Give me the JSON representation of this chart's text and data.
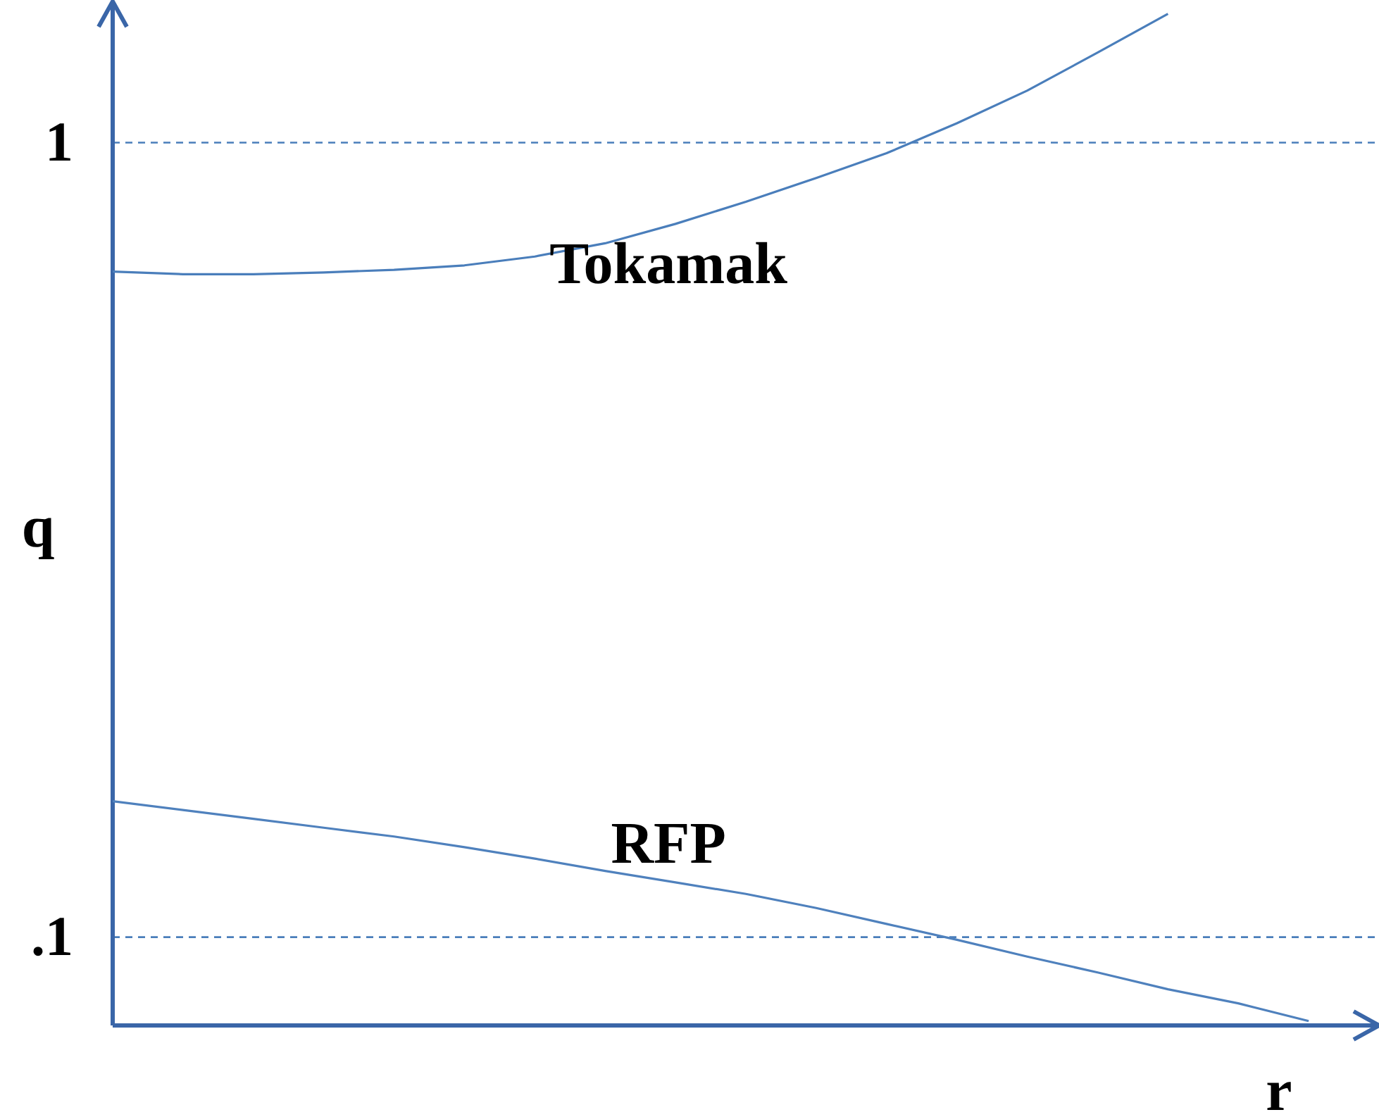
{
  "chart_data": {
    "type": "line",
    "ylabel": "q",
    "annotations": [
      "r"
    ],
    "categories": [
      null,
      null,
      null,
      null,
      null,
      null,
      null,
      null,
      null,
      null,
      null,
      null,
      null,
      null,
      null,
      null,
      null,
      null,
      null
    ],
    "series": [
      {
        "name": "Tokamak",
        "color": "#4a7ebb",
        "values": [
          0.854,
          0.851,
          0.851,
          0.853,
          0.856,
          0.861,
          0.871,
          0.886,
          0.908,
          0.933,
          0.96,
          0.988,
          1.022,
          1.059,
          1.102,
          1.146,
          null,
          null,
          null
        ]
      },
      {
        "name": "RFP",
        "color": "#4f81bd",
        "values": [
          0.254,
          0.244,
          0.234,
          0.224,
          0.214,
          0.202,
          0.189,
          0.175,
          0.162,
          0.149,
          0.133,
          0.115,
          0.097,
          0.078,
          0.06,
          0.041,
          0.025,
          0.005,
          null
        ]
      }
    ],
    "ylim": [
      0,
      1.16
    ],
    "yticks": [
      {
        "value": 1,
        "label": "1"
      },
      {
        "value": 0.1,
        "label": ".1"
      }
    ],
    "ref_lines": [
      {
        "axis": "y",
        "value": 1,
        "color": "#4a7ebb",
        "line_style": "dashed"
      },
      {
        "axis": "y",
        "value": 0.1,
        "color": "#4a7ebb",
        "line_style": "dashed"
      }
    ],
    "tick_labels": "y",
    "grid": false,
    "legend": false,
    "marker": "none",
    "line_style": "solid"
  }
}
